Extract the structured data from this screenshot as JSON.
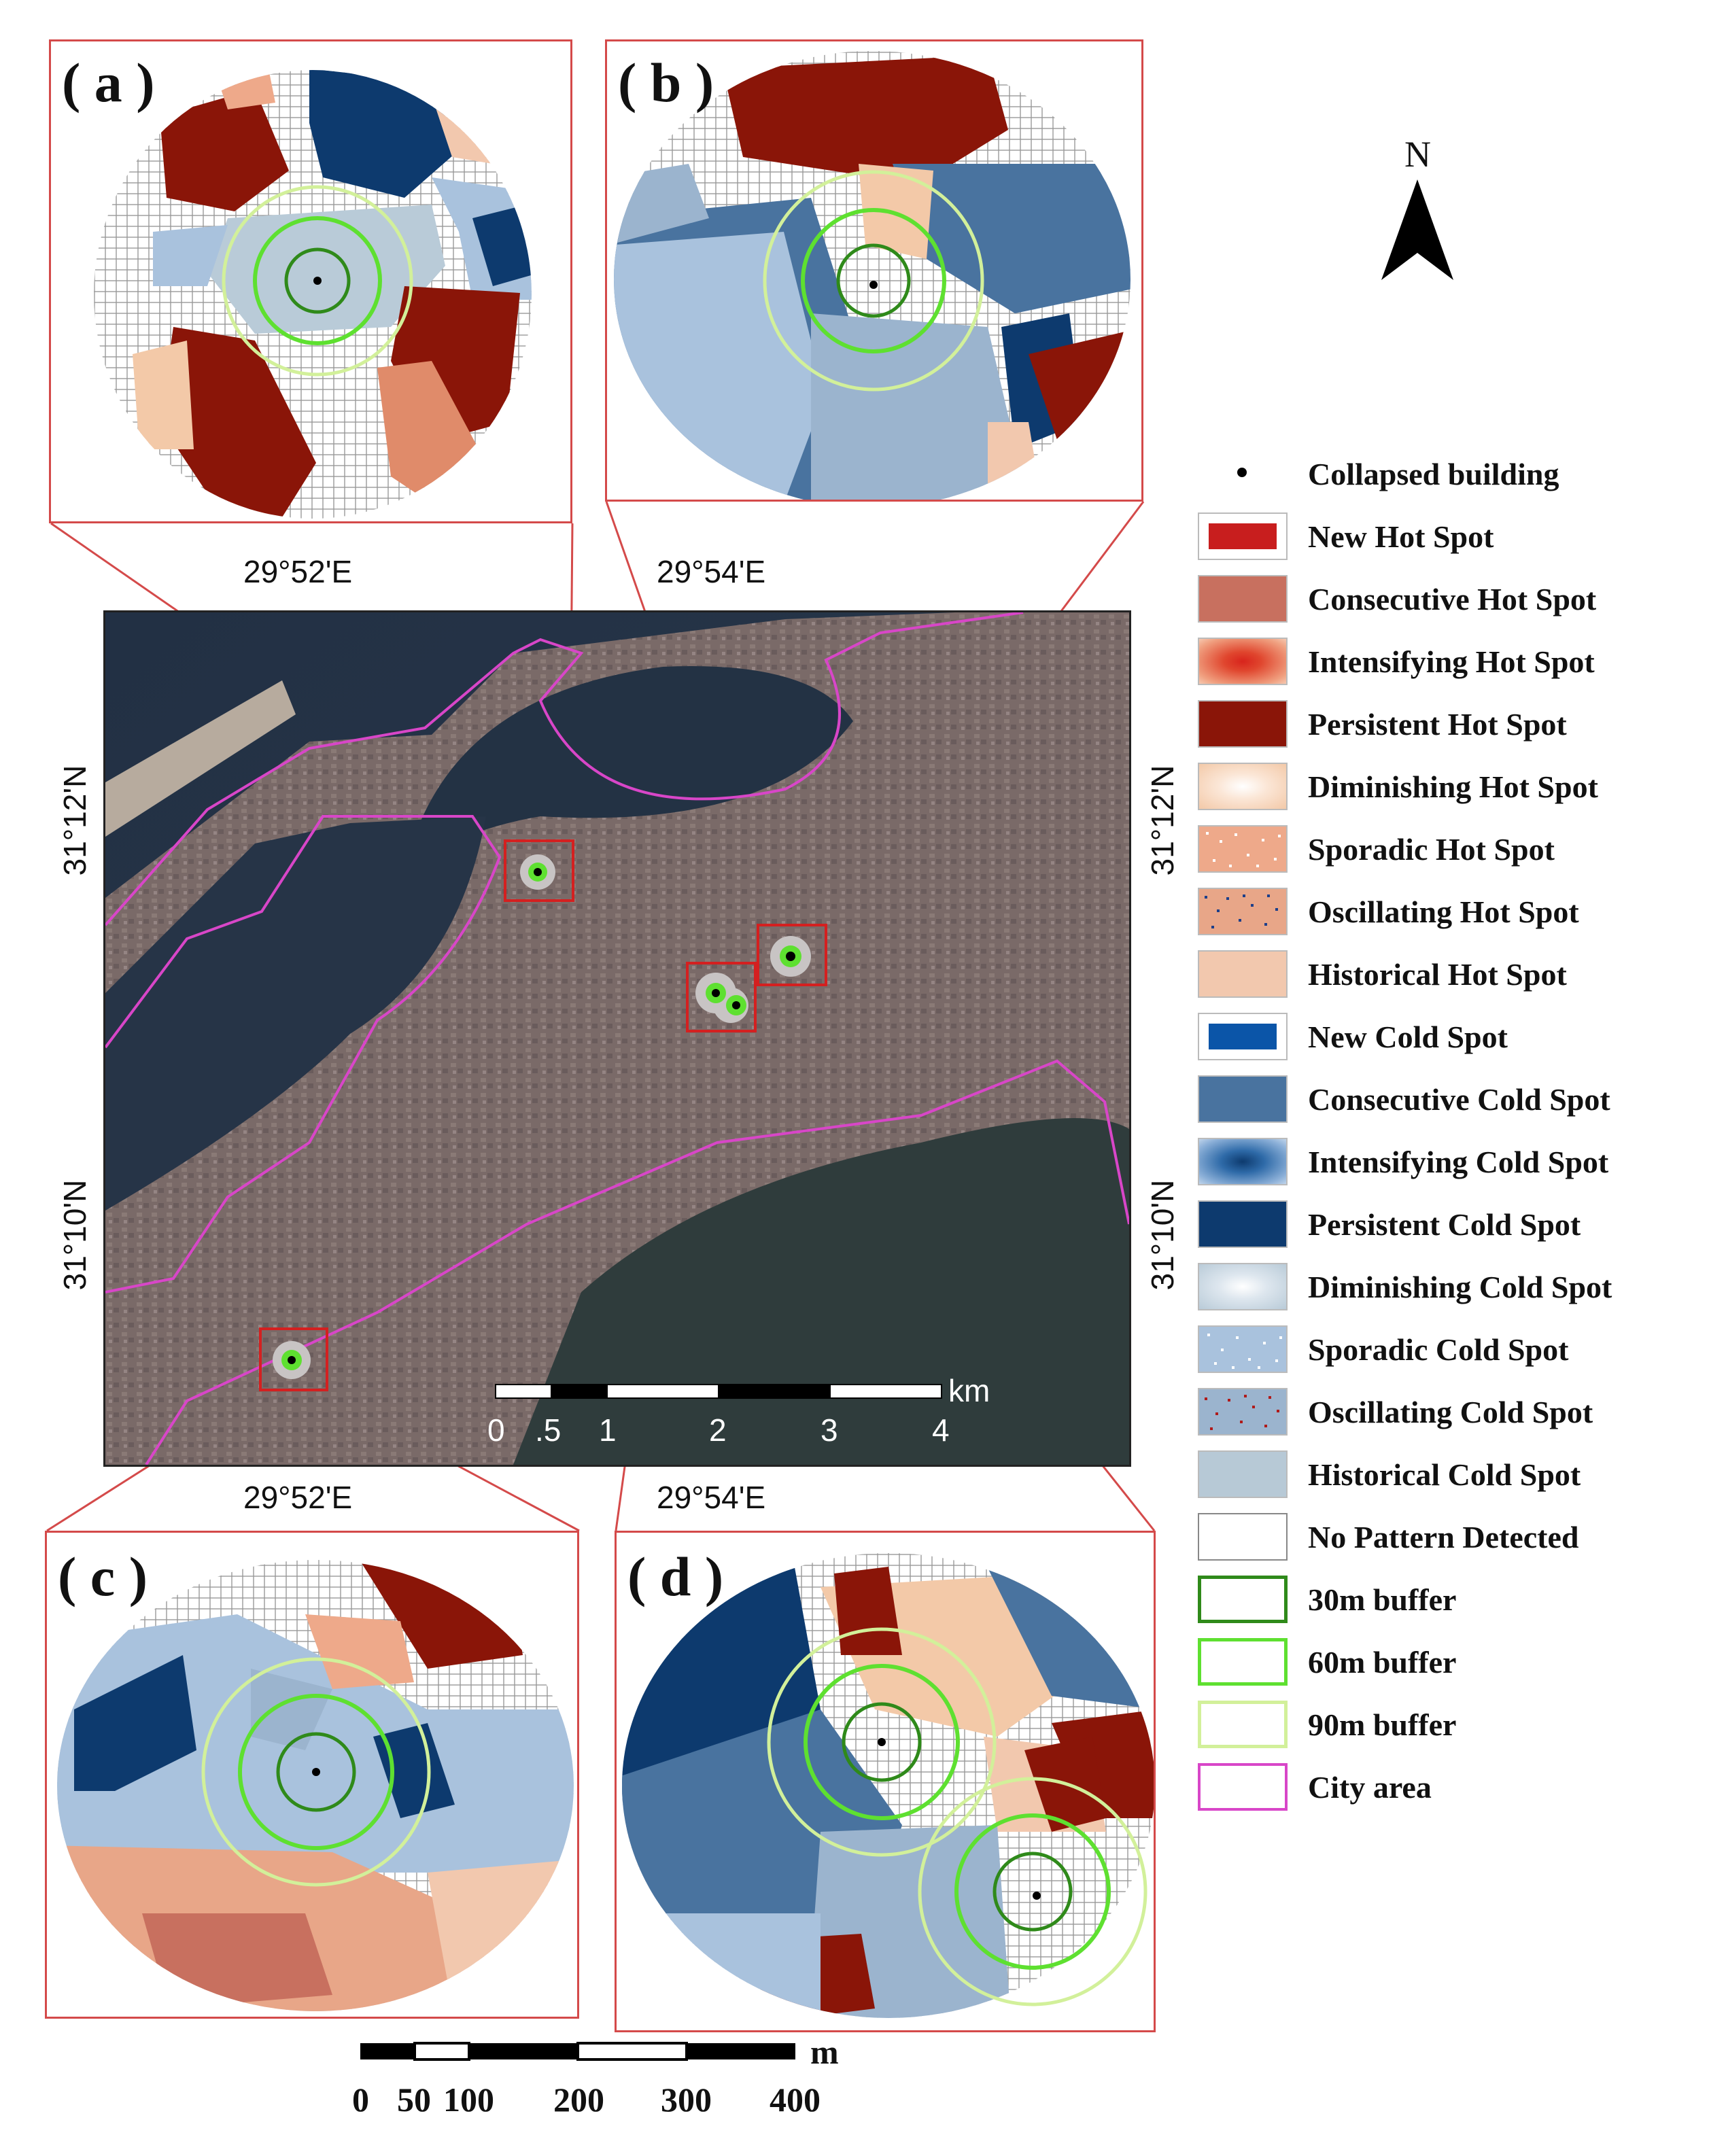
{
  "panels": {
    "a": {
      "label": "( a )"
    },
    "b": {
      "label": "( b )"
    },
    "c": {
      "label": "( c )"
    },
    "d": {
      "label": "( d )"
    }
  },
  "north_arrow": {
    "label": "N"
  },
  "map": {
    "coords": {
      "top_left": "29°52'E",
      "top_right": "29°54'E",
      "bottom_left": "29°52'E",
      "bottom_right": "29°54'E",
      "left_upper": "31°12'N",
      "left_lower": "31°10'N",
      "right_upper": "31°12'N",
      "right_lower": "31°10'N"
    },
    "scalebar": {
      "unit": "km",
      "ticks": [
        "0",
        ".5",
        "1",
        "2",
        "3",
        "4"
      ]
    }
  },
  "scalebar_m": {
    "unit": "m",
    "ticks": [
      "0",
      "50",
      "100",
      "200",
      "300",
      "400"
    ]
  },
  "legend": [
    {
      "label": "Collapsed building",
      "icon": "collapsed-building-dot-icon",
      "color": "#000000"
    },
    {
      "label": "New Hot Spot",
      "icon": "new-hot-spot-swatch",
      "color": "#c81e1e"
    },
    {
      "label": "Consecutive Hot Spot",
      "icon": "consecutive-hot-spot-swatch",
      "color": "#c8705f"
    },
    {
      "label": "Intensifying Hot Spot",
      "icon": "intensifying-hot-spot-swatch",
      "color": "#e0462e"
    },
    {
      "label": "Persistent Hot Spot",
      "icon": "persistent-hot-spot-swatch",
      "color": "#8a1508"
    },
    {
      "label": "Diminishing Hot Spot",
      "icon": "diminishing-hot-spot-swatch",
      "color": "#f3c9a8"
    },
    {
      "label": "Sporadic Hot Spot",
      "icon": "sporadic-hot-spot-swatch",
      "color": "#eea98a"
    },
    {
      "label": "Oscillating Hot Spot",
      "icon": "oscillating-hot-spot-swatch",
      "color": "#e8a688"
    },
    {
      "label": "Historical Hot Spot",
      "icon": "historical-hot-spot-swatch",
      "color": "#f2c8ae"
    },
    {
      "label": "New Cold Spot",
      "icon": "new-cold-spot-swatch",
      "color": "#0b55a8"
    },
    {
      "label": "Consecutive Cold Spot",
      "icon": "consecutive-cold-spot-swatch",
      "color": "#49739f"
    },
    {
      "label": "Intensifying Cold Spot",
      "icon": "intensifying-cold-spot-swatch",
      "color": "#2e6aa8"
    },
    {
      "label": "Persistent Cold Spot",
      "icon": "persistent-cold-spot-swatch",
      "color": "#0d3a6e"
    },
    {
      "label": "Diminishing Cold Spot",
      "icon": "diminishing-cold-spot-swatch",
      "color": "#b9cbd8"
    },
    {
      "label": "Sporadic Cold Spot",
      "icon": "sporadic-cold-spot-swatch",
      "color": "#a9c2dd"
    },
    {
      "label": "Oscillating Cold Spot",
      "icon": "oscillating-cold-spot-swatch",
      "color": "#9bb4ce"
    },
    {
      "label": "Historical Cold Spot",
      "icon": "historical-cold-spot-swatch",
      "color": "#b7c9d6"
    },
    {
      "label": "No Pattern Detected",
      "icon": "no-pattern-swatch",
      "color": "#ffffff"
    },
    {
      "label": "30m buffer",
      "icon": "buffer-30m-swatch",
      "color": "#2f8a1a"
    },
    {
      "label": "60m buffer",
      "icon": "buffer-60m-swatch",
      "color": "#5ee030"
    },
    {
      "label": "90m buffer",
      "icon": "buffer-90m-swatch",
      "color": "#d2f09a"
    },
    {
      "label": "City area",
      "icon": "city-area-swatch",
      "color": "#d846c8"
    }
  ]
}
